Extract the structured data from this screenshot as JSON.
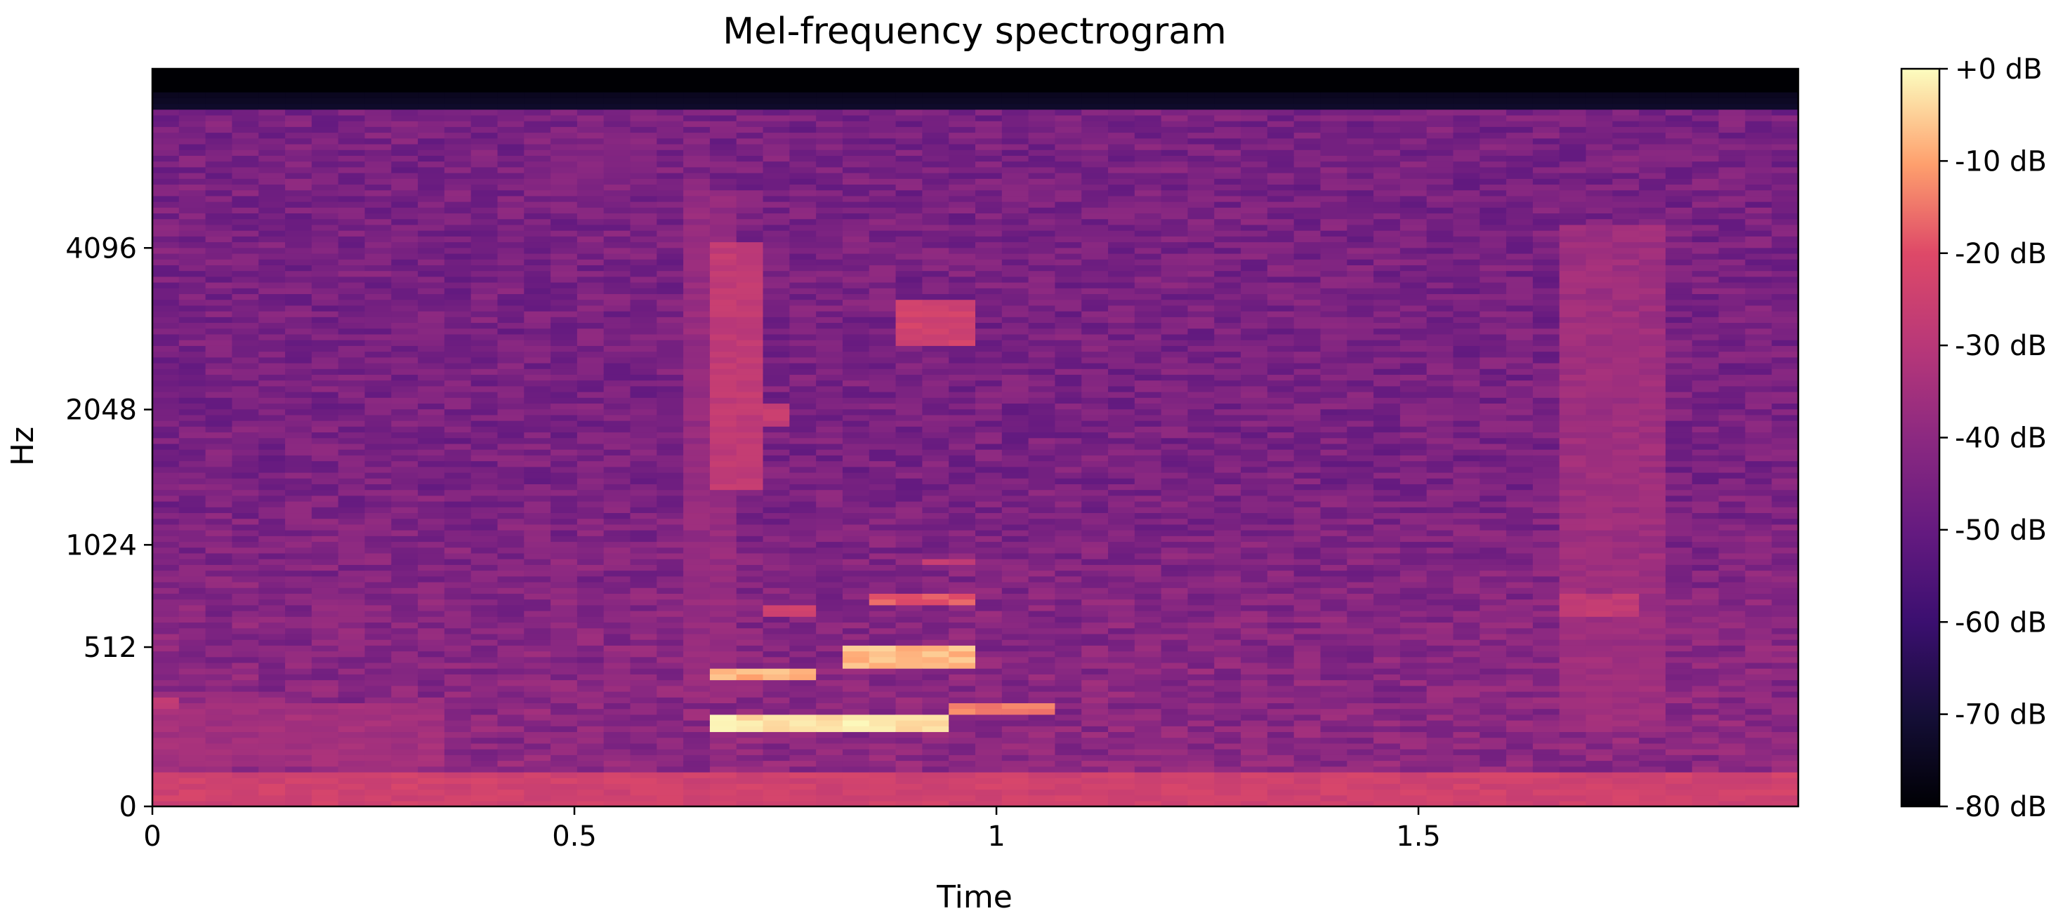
{
  "chart_data": {
    "type": "heatmap",
    "title": "Mel-frequency spectrogram",
    "xlabel": "Time",
    "ylabel": "Hz",
    "x_scale": "linear",
    "y_scale": "mel",
    "xlim": [
      0,
      1.95
    ],
    "ylim": [
      0,
      8192
    ],
    "x_ticks": [
      {
        "value": 0,
        "label": "0"
      },
      {
        "value": 0.5,
        "label": "0.5"
      },
      {
        "value": 1,
        "label": "1"
      },
      {
        "value": 1.5,
        "label": "1.5"
      }
    ],
    "y_ticks": [
      {
        "value": 0,
        "label": "0"
      },
      {
        "value": 512,
        "label": "512"
      },
      {
        "value": 1024,
        "label": "1024"
      },
      {
        "value": 2048,
        "label": "2048"
      },
      {
        "value": 4096,
        "label": "4096"
      }
    ],
    "colorbar": {
      "colormap": "magma",
      "range": [
        -80,
        0
      ],
      "ticks": [
        {
          "value": 0,
          "label": "+0 dB"
        },
        {
          "value": -10,
          "label": "-10 dB"
        },
        {
          "value": -20,
          "label": "-20 dB"
        },
        {
          "value": -30,
          "label": "-30 dB"
        },
        {
          "value": -40,
          "label": "-40 dB"
        },
        {
          "value": -50,
          "label": "-50 dB"
        },
        {
          "value": -60,
          "label": "-60 dB"
        },
        {
          "value": -70,
          "label": "-70 dB"
        },
        {
          "value": -80,
          "label": "-80 dB"
        }
      ]
    },
    "time_range": [
      0,
      1.95
    ],
    "mel_bins": 128,
    "frames": 62,
    "background_db": -45,
    "top_band_db": -80,
    "regions": [
      {
        "t0": 0.0,
        "t1": 1.95,
        "f0": 0,
        "f1": 90,
        "db": -24
      },
      {
        "t0": 0.67,
        "t1": 0.95,
        "f0": 215,
        "f1": 260,
        "db": -3
      },
      {
        "t0": 0.95,
        "t1": 1.08,
        "f0": 255,
        "f1": 300,
        "db": -14
      },
      {
        "t0": 0.67,
        "t1": 0.78,
        "f0": 380,
        "f1": 425,
        "db": -8
      },
      {
        "t0": 0.82,
        "t1": 0.98,
        "f0": 430,
        "f1": 520,
        "db": -7
      },
      {
        "t0": 0.71,
        "t1": 0.79,
        "f0": 650,
        "f1": 690,
        "db": -24
      },
      {
        "t0": 0.84,
        "t1": 0.98,
        "f0": 690,
        "f1": 760,
        "db": -18
      },
      {
        "t0": 0.9,
        "t1": 0.97,
        "f0": 900,
        "f1": 960,
        "db": -28
      },
      {
        "t0": 0.66,
        "t1": 0.72,
        "f0": 1400,
        "f1": 4200,
        "db": -28
      },
      {
        "t0": 0.72,
        "t1": 0.77,
        "f0": 1900,
        "f1": 2100,
        "db": -27
      },
      {
        "t0": 0.88,
        "t1": 0.97,
        "f0": 2700,
        "f1": 3300,
        "db": -24
      },
      {
        "t0": 0.63,
        "t1": 0.68,
        "f0": 300,
        "f1": 5200,
        "db": -38
      },
      {
        "t0": 0.47,
        "t1": 0.6,
        "f0": 5200,
        "f1": 6200,
        "db": -43
      },
      {
        "t0": 1.68,
        "t1": 1.8,
        "f0": 200,
        "f1": 4500,
        "db": -36
      },
      {
        "t0": 1.68,
        "t1": 1.77,
        "f0": 650,
        "f1": 760,
        "db": -28
      },
      {
        "t0": 0.0,
        "t1": 0.03,
        "f0": 290,
        "f1": 330,
        "db": -28
      },
      {
        "t0": 0.0,
        "t1": 0.35,
        "f0": 100,
        "f1": 300,
        "db": -35
      }
    ]
  }
}
